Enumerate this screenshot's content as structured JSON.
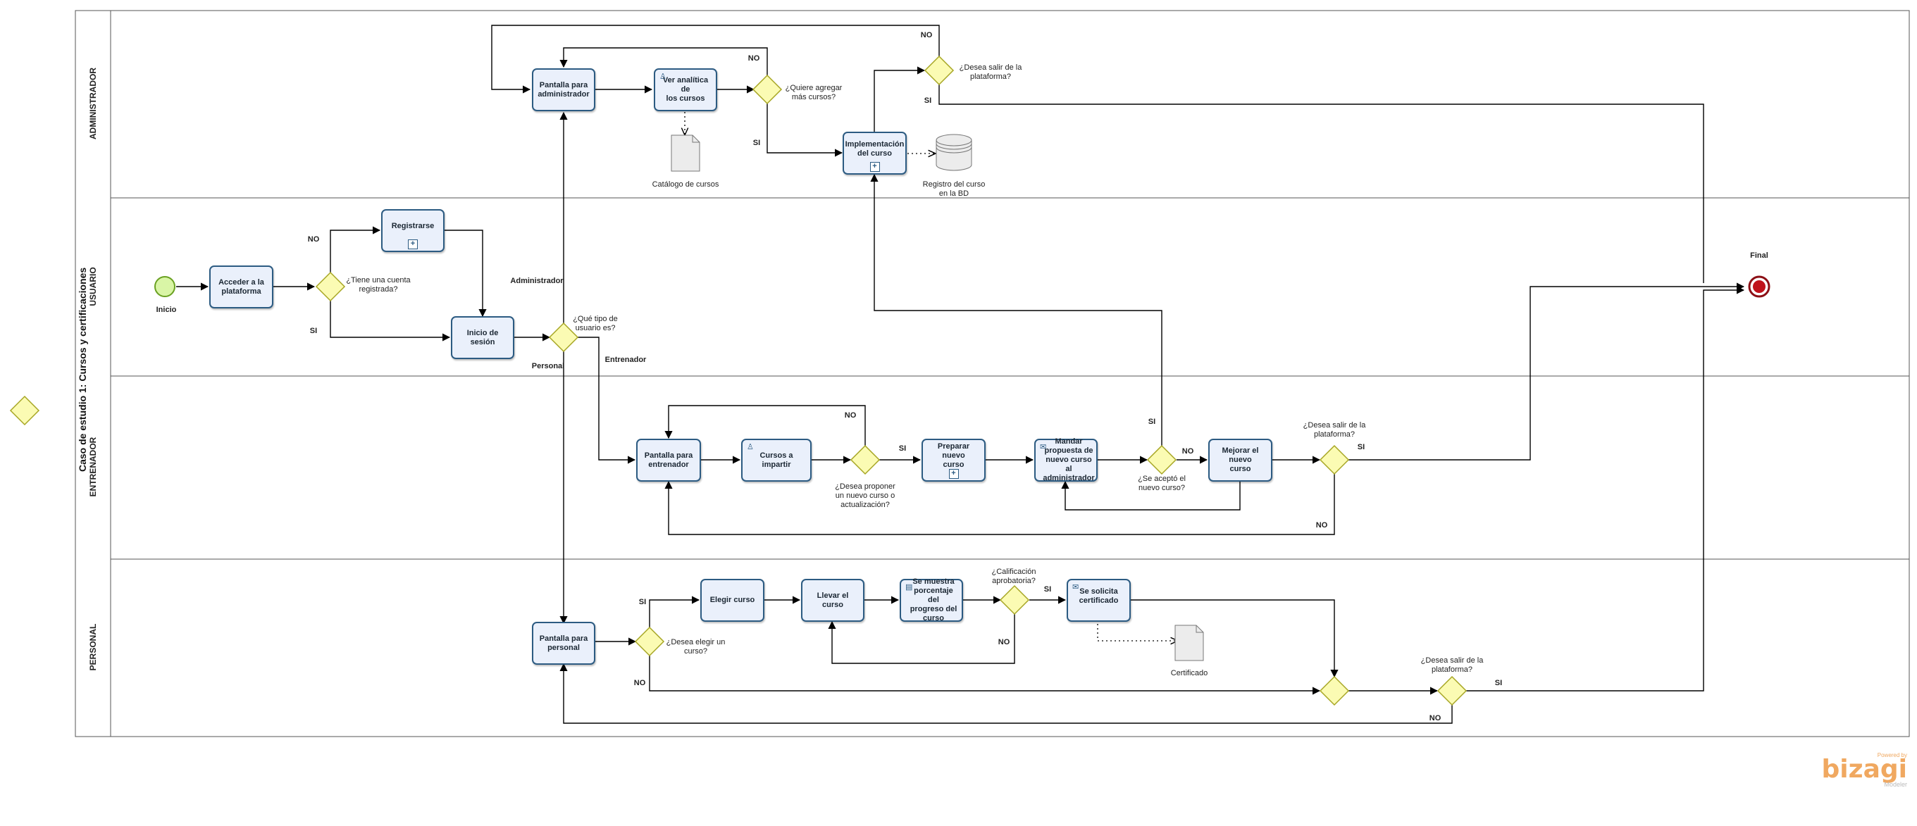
{
  "pool": {
    "title": "Caso de estudio 1: Cursos y certificaciones"
  },
  "lanes": [
    "ADMINISTRADOR",
    "USUARIO",
    "ENTRENADOR",
    "PERSONAL"
  ],
  "events": {
    "start": "Inicio",
    "end": "Final"
  },
  "tasks": {
    "admin_screen": "Pantalla para\nadministrador",
    "analytics": "Ver analítica de\nlos cursos",
    "implementation": "Implementación\ndel curso",
    "register": "Registrarse",
    "access": "Acceder a la\nplataforma",
    "login": "Inicio de sesión",
    "trainer_screen": "Pantalla para\nentrenador",
    "courses_teach": "Cursos a impartir",
    "prepare": "Preparar nuevo\ncurso",
    "send_proposal": "Mandar\npropuesta de\nnuevo curso al\nadministrador",
    "improve": "Mejorar el nuevo\ncurso",
    "personal_screen": "Pantalla para\npersonal",
    "choose_course": "Elegir curso",
    "take_course": "Llevar el curso",
    "show_progress": "Se muestra\nporcentaje del\nprogreso del\ncurso",
    "request_cert": "Se solicita\ncertificado"
  },
  "gateways": {
    "add_courses": "¿Quiere agregar\nmás cursos?",
    "admin_exit": "¿Desea salir de la\nplataforma?",
    "has_account": "¿Tiene una cuenta\nregistrada?",
    "user_type": "¿Qué tipo de\nusuario es?",
    "propose": "¿Desea proponer\nun nuevo curso o\nactualización?",
    "accepted": "¿Se aceptó el\nnuevo curso?",
    "trainer_exit": "¿Desea salir de la\nplataforma?",
    "choose": "¿Desea elegir un\ncurso?",
    "passing": "¿Calificación\naprobatoria?",
    "personal_exit": "¿Desea salir de la\nplataforma?"
  },
  "artifacts": {
    "catalog": "Catálogo de cursos",
    "db": "Registro del curso\nen la BD",
    "certificate": "Certificado"
  },
  "flow_labels": {
    "no": "NO",
    "si": "SI",
    "administrador": "Administrador",
    "entrenador": "Entrenador",
    "personal": "Personal"
  },
  "branding": {
    "powered": "Powered by",
    "name": "bizagi",
    "product": "Modeler"
  },
  "colors": {
    "task_border": "#2c5b82",
    "task_fill": "#eaf0fb",
    "gateway_fill": "#fbfbb3",
    "gateway_border": "#a7a624",
    "start_fill": "#d9f5a6",
    "end_fill": "#c0121b"
  }
}
